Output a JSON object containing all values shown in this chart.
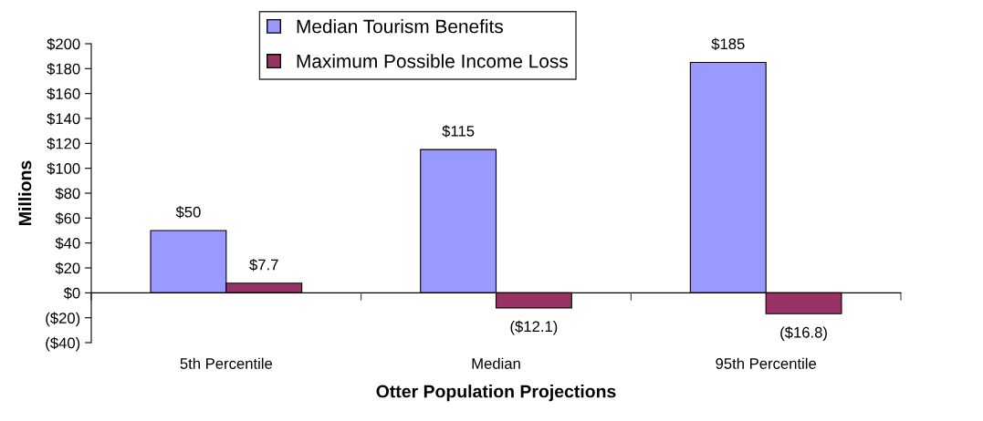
{
  "chart_data": {
    "type": "bar",
    "xlabel": "Otter Population Projections",
    "ylabel": "Millions",
    "categories": [
      "5th Percentile",
      "Median",
      "95th Percentile"
    ],
    "series": [
      {
        "name": "Median Tourism Benefits",
        "color": "#9999ff",
        "values": [
          50,
          115,
          185
        ],
        "value_labels": [
          "$50",
          "$115",
          "$185"
        ]
      },
      {
        "name": "Maximum Possible Income Loss",
        "color": "#993366",
        "values": [
          7.7,
          -12.1,
          -16.8
        ],
        "value_labels": [
          "$7.7",
          "($12.1)",
          "($16.8)"
        ]
      }
    ],
    "ylim": [
      -40,
      200
    ],
    "yticks": [
      {
        "value": -40,
        "label": "($40)"
      },
      {
        "value": -20,
        "label": "($20)"
      },
      {
        "value": 0,
        "label": "$0"
      },
      {
        "value": 20,
        "label": "$20"
      },
      {
        "value": 40,
        "label": "$40"
      },
      {
        "value": 60,
        "label": "$60"
      },
      {
        "value": 80,
        "label": "$80"
      },
      {
        "value": 100,
        "label": "$100"
      },
      {
        "value": 120,
        "label": "$120"
      },
      {
        "value": 140,
        "label": "$140"
      },
      {
        "value": 160,
        "label": "$160"
      },
      {
        "value": 180,
        "label": "$180"
      },
      {
        "value": 200,
        "label": "$200"
      }
    ],
    "legend": "top"
  }
}
